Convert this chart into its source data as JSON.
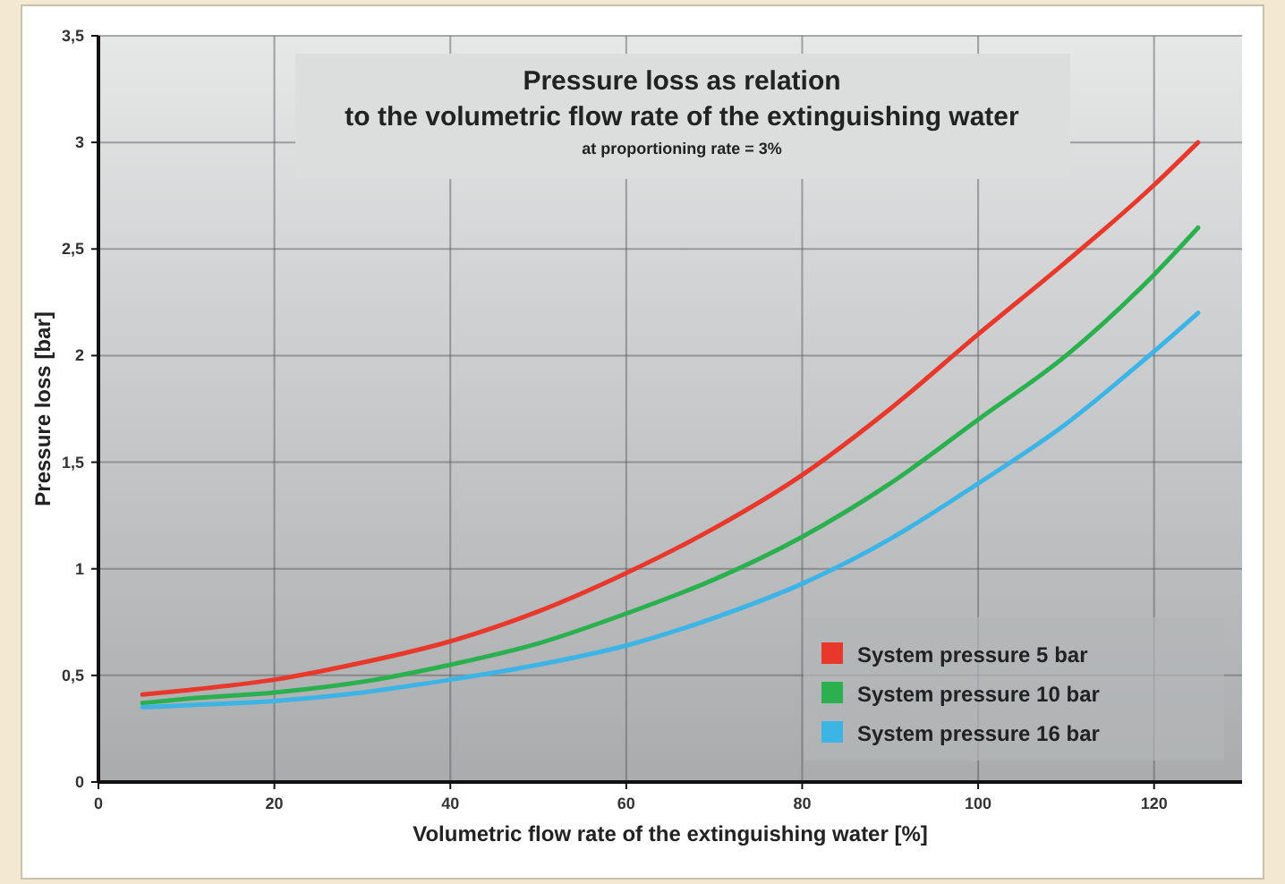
{
  "chart_data": {
    "type": "line",
    "title": "Pressure loss as relation\nto the volumetric flow rate of the extinguishing water",
    "subtitle": "at proportioning rate = 3%",
    "xlabel": "Volumetric flow rate of the extinguishing water [%]",
    "ylabel": "Pressure loss [bar]",
    "xlim": [
      0,
      130
    ],
    "ylim": [
      0,
      3.5
    ],
    "xticks": [
      0,
      20,
      40,
      60,
      80,
      100,
      120
    ],
    "yticks": [
      0,
      {
        "value": 0.5,
        "label": "0,5"
      },
      1,
      {
        "value": 1.5,
        "label": "1,5"
      },
      2,
      {
        "value": 2.5,
        "label": "2,5"
      },
      3,
      {
        "value": 3.5,
        "label": "3,5"
      }
    ],
    "grid": true,
    "legend": "bottom right",
    "line_style": "solid",
    "series": [
      {
        "name": "System pressure 5 bar",
        "color": "#e8382c",
        "x": [
          5,
          10,
          20,
          30,
          40,
          50,
          60,
          70,
          80,
          90,
          100,
          110,
          120,
          125
        ],
        "values": [
          0.41,
          0.43,
          0.48,
          0.56,
          0.66,
          0.8,
          0.98,
          1.19,
          1.44,
          1.75,
          2.1,
          2.44,
          2.8,
          3.0
        ]
      },
      {
        "name": "System pressure 10 bar",
        "color": "#2bb04f",
        "x": [
          5,
          10,
          20,
          30,
          40,
          50,
          60,
          70,
          80,
          90,
          100,
          110,
          120,
          125
        ],
        "values": [
          0.37,
          0.39,
          0.42,
          0.47,
          0.55,
          0.65,
          0.79,
          0.95,
          1.15,
          1.4,
          1.7,
          2.0,
          2.38,
          2.6
        ]
      },
      {
        "name": "System pressure 16 bar",
        "color": "#3cb4e6",
        "x": [
          5,
          10,
          20,
          30,
          40,
          50,
          60,
          70,
          80,
          90,
          100,
          110,
          120,
          125
        ],
        "values": [
          0.35,
          0.36,
          0.38,
          0.42,
          0.48,
          0.55,
          0.64,
          0.77,
          0.93,
          1.14,
          1.4,
          1.68,
          2.02,
          2.2
        ]
      }
    ]
  }
}
